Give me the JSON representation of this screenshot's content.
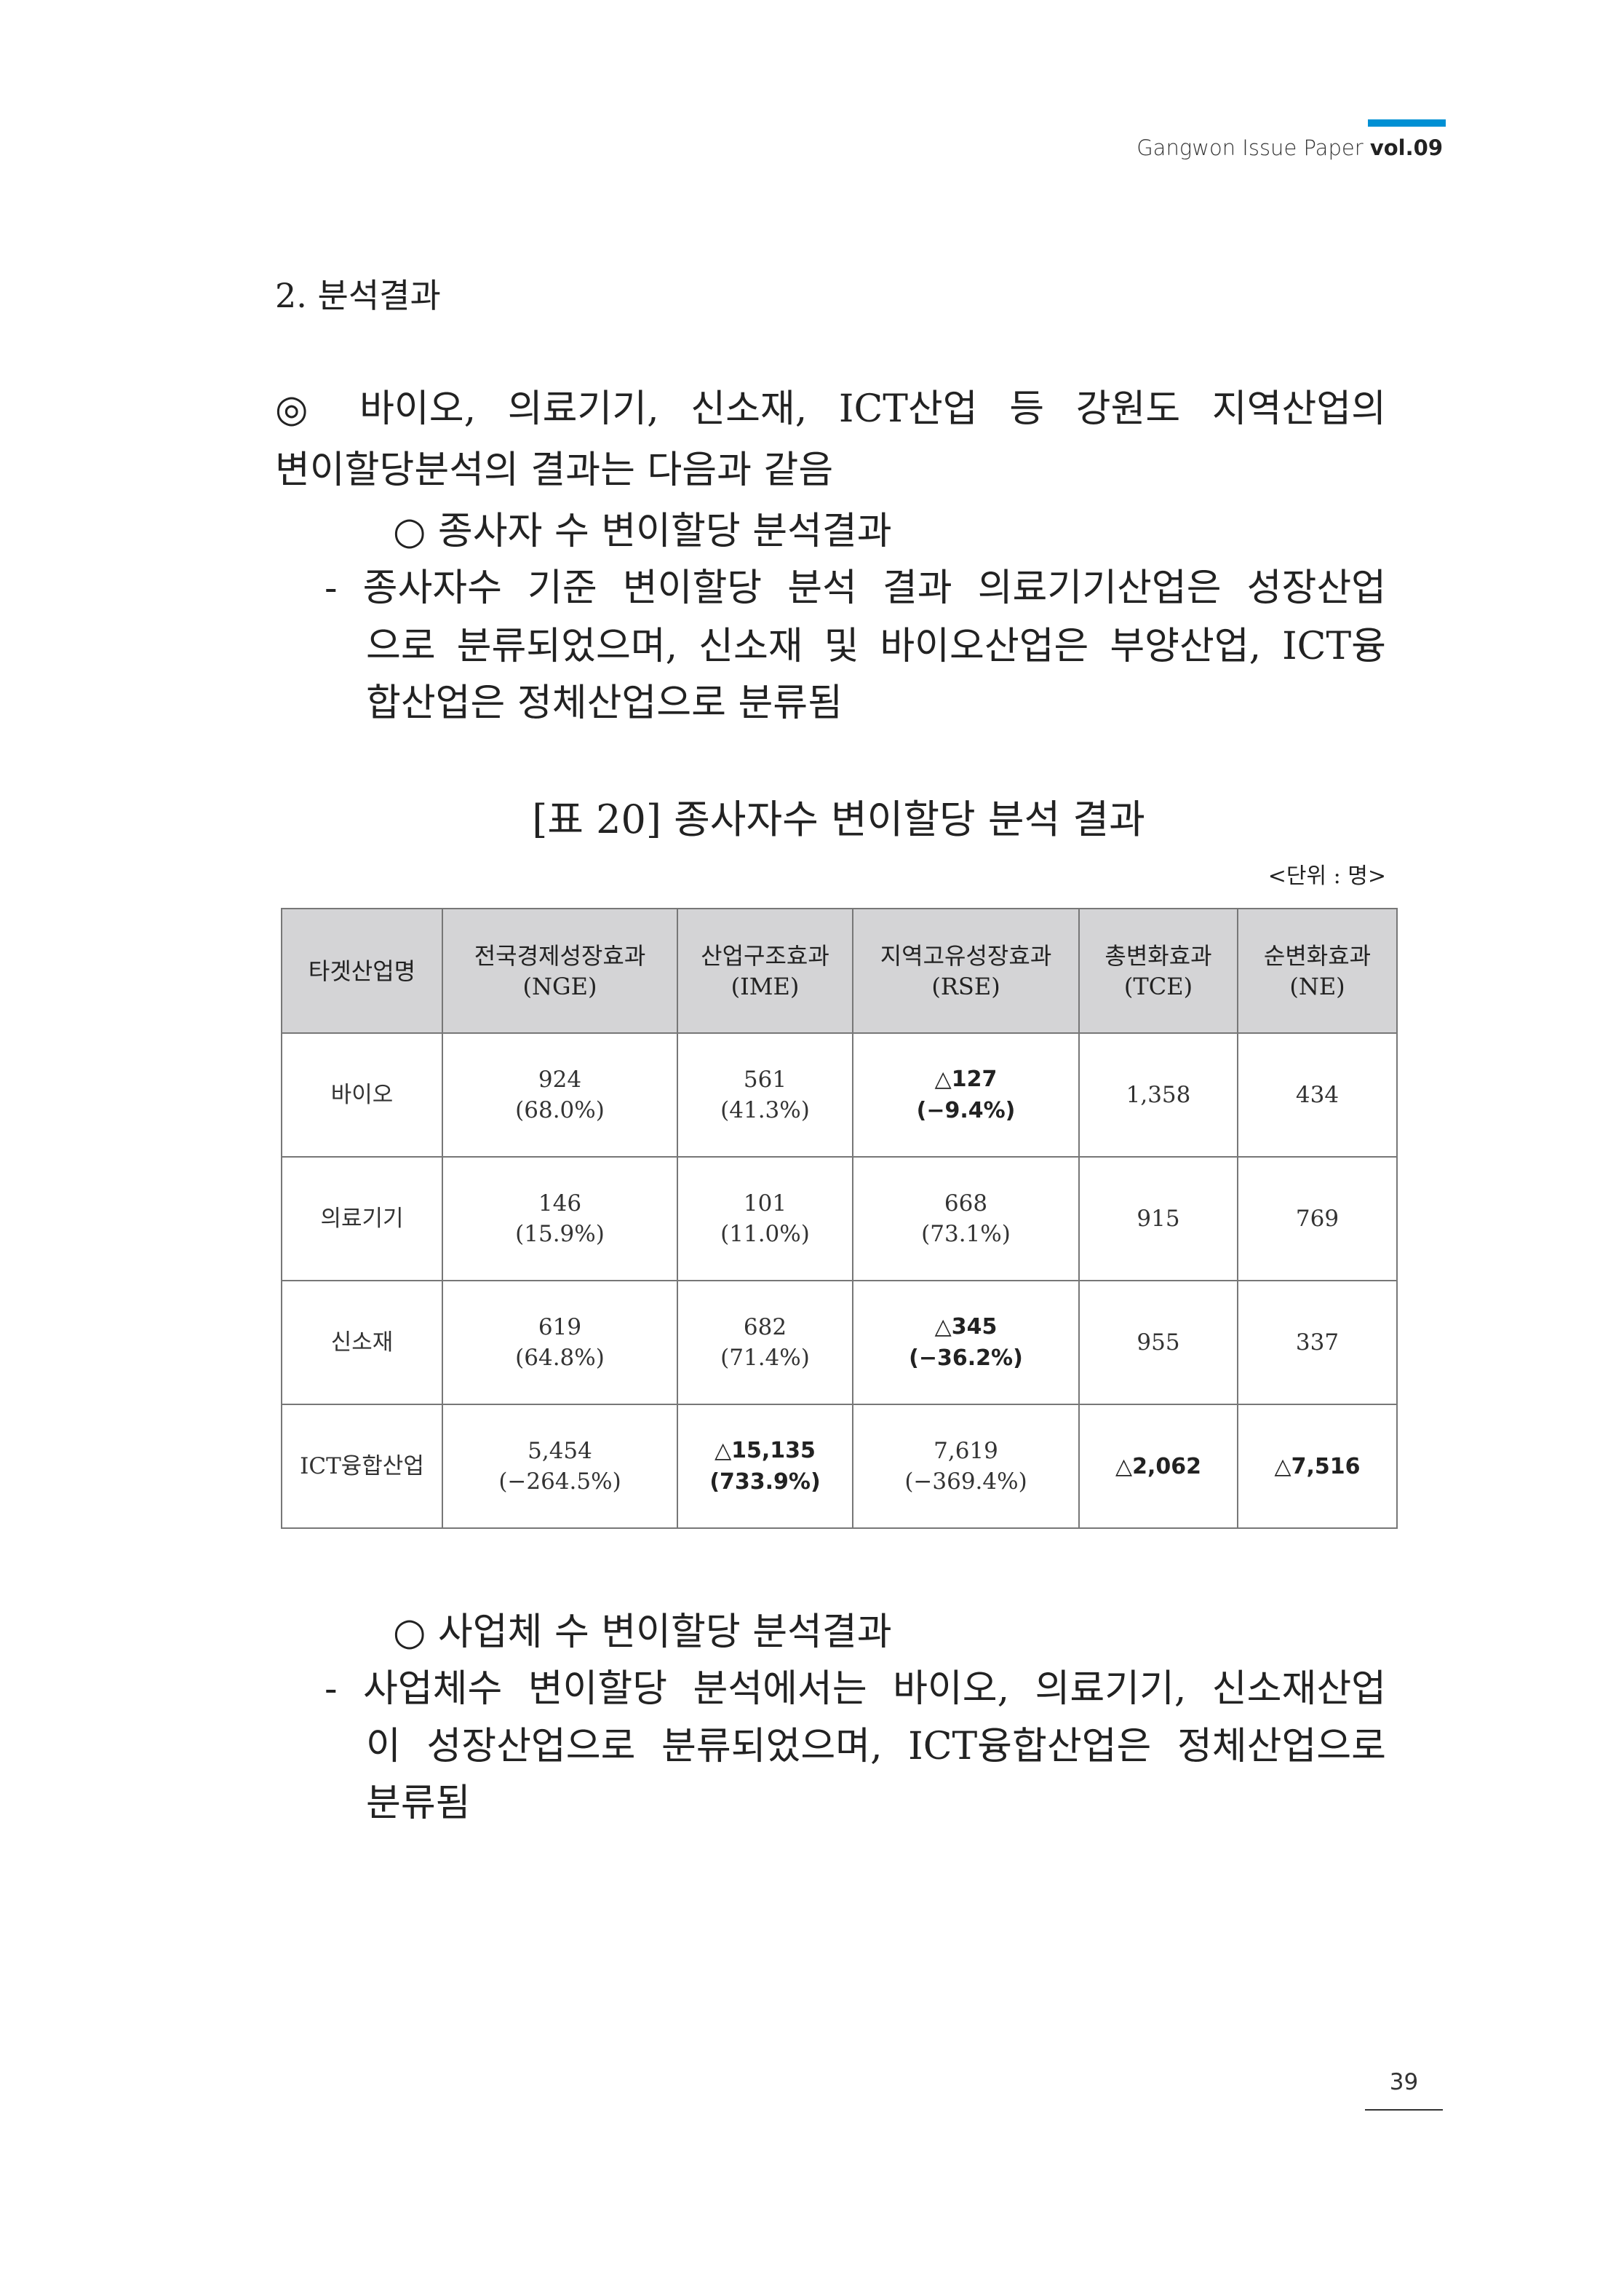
{
  "header": {
    "title": "Gangwon Issue Paper ",
    "vol": "vol.09",
    "accent": "#0090d4"
  },
  "section_title": "2. 분석결과",
  "intro": {
    "line1": "◎ 바이오, 의료기기, 신소재, ICT산업 등 강원도 지역산업의",
    "line2": "변이할당분석의 결과는 다음과 같음"
  },
  "employees": {
    "heading": "○ 종사자 수 변이할당 분석결과",
    "lines": [
      "- 종사자수 기준 변이할당 분석 결과 의료기기산업은 성장산업",
      "으로 분류되었으며, 신소재 및 바이오산업은 부양산업, ICT융",
      "합산업은 정체산업으로 분류됨"
    ]
  },
  "table": {
    "caption": "[표 20] 종사자수 변이할당 분석 결과",
    "unit": "<단위 : 명>",
    "headers": [
      [
        "타겟산업명",
        ""
      ],
      [
        "전국경제성장효과",
        "(NGE)"
      ],
      [
        "산업구조효과",
        "(IME)"
      ],
      [
        "지역고유성장효과",
        "(RSE)"
      ],
      [
        "총변화효과",
        "(TCE)"
      ],
      [
        "순변화효과",
        "(NE)"
      ]
    ],
    "rows": [
      {
        "name": "바이오",
        "nge": [
          "924",
          "(68.0%)"
        ],
        "ime": [
          "561",
          "(41.3%)"
        ],
        "rse": [
          "△127",
          "(−9.4%)"
        ],
        "tce": "1,358",
        "ne": "434"
      },
      {
        "name": "의료기기",
        "nge": [
          "146",
          "(15.9%)"
        ],
        "ime": [
          "101",
          "(11.0%)"
        ],
        "rse": [
          "668",
          "(73.1%)"
        ],
        "tce": "915",
        "ne": "769"
      },
      {
        "name": "신소재",
        "nge": [
          "619",
          "(64.8%)"
        ],
        "ime": [
          "682",
          "(71.4%)"
        ],
        "rse": [
          "△345",
          "(−36.2%)"
        ],
        "tce": "955",
        "ne": "337"
      },
      {
        "name": "ICT융합산업",
        "nge": [
          "5,454",
          "(−264.5%)"
        ],
        "ime": [
          "△15,135",
          "(733.9%)"
        ],
        "rse": [
          "7,619",
          "(−369.4%)"
        ],
        "tce": "△2,062",
        "ne": "△7,516"
      }
    ]
  },
  "businesses": {
    "heading": "○ 사업체 수 변이할당 분석결과",
    "lines": [
      "- 사업체수 변이할당 분석에서는 바이오, 의료기기, 신소재산업",
      "이 성장산업으로 분류되었으며, ICT융합산업은 정체산업으로",
      "분류됨"
    ]
  },
  "page_number": "39"
}
